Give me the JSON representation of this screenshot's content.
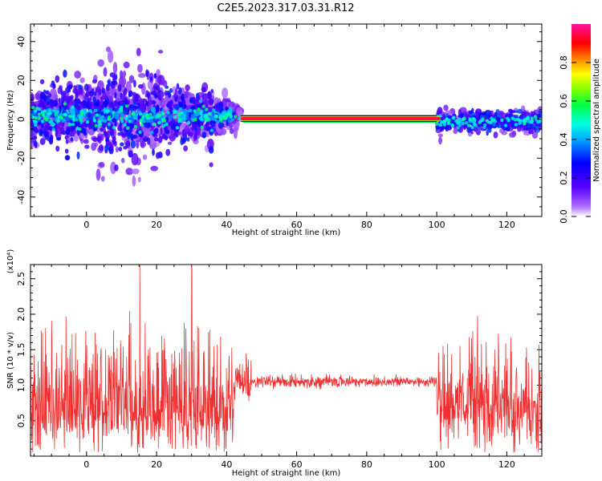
{
  "title": "C2E5.2023.317.03.31.R12",
  "chart_data": [
    {
      "type": "heatmap",
      "title": "C2E5.2023.317.03.31.R12",
      "xlabel": "Height of straight line (km)",
      "ylabel": "Frequency (Hz)",
      "xlim": [
        -16,
        130
      ],
      "ylim": [
        -50,
        49
      ],
      "xticks": [
        0,
        20,
        40,
        60,
        80,
        100,
        120
      ],
      "yticks": [
        -40,
        -20,
        0,
        20,
        40
      ],
      "xtick_labels": [
        "0",
        "20",
        "40",
        "60",
        "80",
        "100",
        "120"
      ],
      "ytick_labels": [
        "-40",
        "-20",
        "0",
        "20",
        "40"
      ],
      "description_segments": [
        {
          "x_range": [
            -16,
            36
          ],
          "freq_center": 2,
          "freq_spread": 12,
          "amplitude": "low-mid (purple/blue)"
        },
        {
          "x_range": [
            36,
            44
          ],
          "freq_center": 1,
          "freq_spread": 3,
          "amplitude": "mid (cyan/green)"
        },
        {
          "x_range": [
            44,
            100
          ],
          "freq_center": 0,
          "freq_spread": 1,
          "amplitude": "high (red/pink)"
        },
        {
          "x_range": [
            100,
            130
          ],
          "freq_center": -1,
          "freq_spread": 5,
          "amplitude": "mid (cyan)"
        }
      ],
      "colorbar": {
        "label": "Normalized spectral amplitude",
        "range": [
          0,
          1
        ],
        "ticks": [
          0.0,
          0.2,
          0.4,
          0.6,
          0.8
        ],
        "tick_labels": [
          "0.0",
          "0.2",
          "0.4",
          "0.6",
          "0.8"
        ],
        "colors": [
          "#8a2be2",
          "#0000ff",
          "#00ffff",
          "#00ff00",
          "#ffff00",
          "#ff0000",
          "#ff1493"
        ]
      }
    },
    {
      "type": "line",
      "xlabel": "Height of straight line (km)",
      "ylabel": "SNR (10 * v/v)",
      "y_multiplier": "(x10⁴)",
      "xlim": [
        -16,
        130
      ],
      "ylim": [
        0,
        2.7
      ],
      "xticks": [
        0,
        20,
        40,
        60,
        80,
        100,
        120
      ],
      "yticks": [
        0.5,
        1.0,
        1.5,
        2.0,
        2.5
      ],
      "xtick_labels": [
        "0",
        "20",
        "40",
        "60",
        "80",
        "100",
        "120"
      ],
      "ytick_labels": [
        "0.5",
        "1.0",
        "1.5",
        "2.0",
        "2.5"
      ],
      "series_color": "#f03030",
      "segments": [
        {
          "x_range": [
            -16,
            42
          ],
          "mean": 0.7,
          "noise": 0.9,
          "peak": 2.7,
          "peak_x": 30
        },
        {
          "x_range": [
            42,
            47
          ],
          "mean": 1.07,
          "noise": 0.15
        },
        {
          "x_range": [
            47,
            100
          ],
          "mean": 1.05,
          "noise": 0.04
        },
        {
          "x_range": [
            100,
            130
          ],
          "mean": 1.0,
          "noise": 0.55
        }
      ]
    }
  ]
}
